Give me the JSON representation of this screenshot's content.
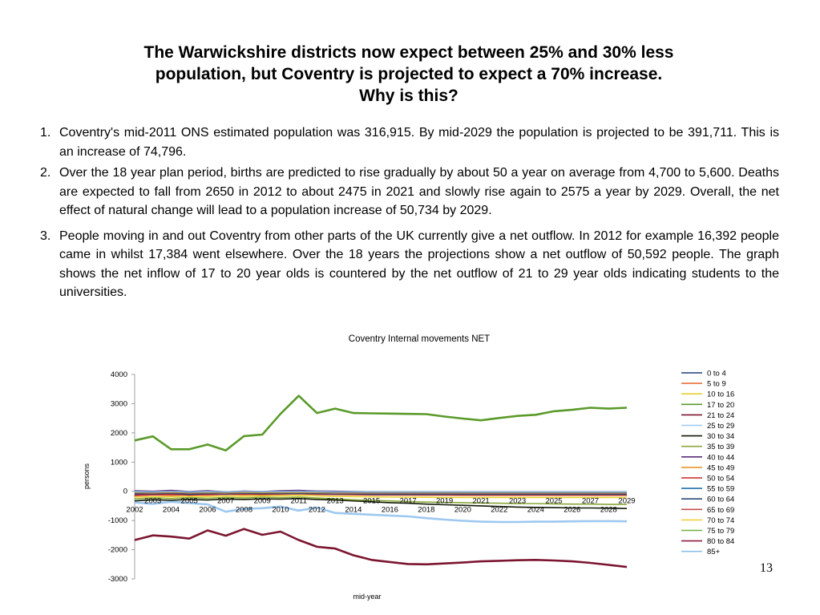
{
  "slide": {
    "title_lines": [
      "The Warwickshire districts now expect between 25% and 30% less",
      "population, but Coventry is projected to expect a 70% increase.",
      "Why is this?"
    ],
    "points": [
      {
        "num": "1.",
        "text": "Coventry's mid-2011  ONS estimated population was 316,915. By mid-2029 the population is projected to be 391,711. This is an increase of 74,796."
      },
      {
        "num": "2.",
        "text": "Over the 18 year plan period, births are predicted to rise gradually by about 50 a year on average from 4,700 to 5,600. Deaths are expected to fall from 2650 in 2012 to about 2475 in 2021 and slowly rise again to 2575 a year by 2029. Overall, the net effect of natural change will lead to a population increase of 50,734 by 2029."
      },
      {
        "num": "3.",
        "text": "People moving in and out Coventry from other parts of the UK currently give a net outflow. In 2012 for example 16,392 people came in whilst 17,384 went elsewhere. Over the 18 years the projections show a net outflow of 50,592 people. The graph shows the net inflow of 17 to 20 year olds is countered by the net outflow of 21 to 29 year olds indicating students to the universities."
      }
    ],
    "page_number": "13"
  },
  "chart_data": {
    "type": "line",
    "title": "Coventry Internal movements NET",
    "xlabel": "mid-year",
    "ylabel": "persons",
    "ylim": [
      -3000,
      4000
    ],
    "yticks": [
      4000,
      3000,
      2000,
      1000,
      0,
      -1000,
      -2000,
      -3000
    ],
    "grid": false,
    "legend_position": "right",
    "x": [
      2002,
      2003,
      2004,
      2005,
      2006,
      2007,
      2008,
      2009,
      2010,
      2011,
      2012,
      2013,
      2014,
      2015,
      2016,
      2017,
      2018,
      2019,
      2020,
      2021,
      2022,
      2023,
      2024,
      2025,
      2026,
      2027,
      2028,
      2029
    ],
    "xticks_upper": [
      "2003",
      "2005",
      "2007",
      "2009",
      "2011",
      "2013",
      "2015",
      "2017",
      "2019",
      "2021",
      "2023",
      "2025",
      "2027",
      "2029"
    ],
    "xticks_lower": [
      "2002",
      "2004",
      "2006",
      "2008",
      "2010",
      "2012",
      "2014",
      "2016",
      "2018",
      "2020",
      "2022",
      "2024",
      "2026",
      "2028"
    ],
    "series": [
      {
        "name": "0 to 4",
        "color": "#1f3f7f",
        "values": [
          -120,
          -100,
          -110,
          -90,
          -100,
          -80,
          -90,
          -70,
          -80,
          -60,
          -70,
          -80,
          -90,
          -90,
          -95,
          -95,
          -100,
          -100,
          -100,
          -100,
          -100,
          -100,
          -100,
          -100,
          -100,
          -100,
          -100,
          -100
        ]
      },
      {
        "name": "5 to 9",
        "color": "#e8703a",
        "values": [
          -150,
          -120,
          -140,
          -110,
          -130,
          -100,
          -120,
          -100,
          -110,
          -90,
          -100,
          -110,
          -120,
          -125,
          -130,
          -130,
          -135,
          -135,
          -140,
          -140,
          -140,
          -140,
          -140,
          -140,
          -140,
          -140,
          -140,
          -140
        ]
      },
      {
        "name": "10 to 16",
        "color": "#e8d030",
        "values": [
          -200,
          -180,
          -190,
          -170,
          -180,
          -160,
          -170,
          -150,
          -160,
          -140,
          -160,
          -170,
          -180,
          -190,
          -200,
          -200,
          -205,
          -210,
          -210,
          -210,
          -210,
          -210,
          -210,
          -210,
          -210,
          -210,
          -210,
          -210
        ]
      },
      {
        "name": "17 to 20",
        "color": "#5a9a2a",
        "values": [
          1740,
          1880,
          1440,
          1440,
          1600,
          1400,
          1890,
          1940,
          2650,
          3270,
          2680,
          2830,
          2680,
          2670,
          2660,
          2650,
          2640,
          2560,
          2490,
          2430,
          2510,
          2580,
          2620,
          2740,
          2790,
          2860,
          2830,
          2860
        ]
      },
      {
        "name": "21 to 24",
        "color": "#7b1530",
        "values": [
          -1670,
          -1510,
          -1550,
          -1620,
          -1340,
          -1520,
          -1290,
          -1490,
          -1380,
          -1670,
          -1900,
          -1960,
          -2190,
          -2350,
          -2420,
          -2490,
          -2500,
          -2470,
          -2440,
          -2400,
          -2380,
          -2360,
          -2350,
          -2370,
          -2400,
          -2450,
          -2520,
          -2590
        ]
      },
      {
        "name": "25 to 29",
        "color": "#9dc8f0",
        "values": [
          -380,
          -430,
          -360,
          -400,
          -450,
          -700,
          -600,
          -580,
          -520,
          -660,
          -560,
          -740,
          -770,
          -800,
          -830,
          -860,
          -920,
          -970,
          -1010,
          -1040,
          -1050,
          -1050,
          -1040,
          -1040,
          -1030,
          -1020,
          -1020,
          -1030
        ]
      },
      {
        "name": "30 to 34",
        "color": "#101a06",
        "values": [
          -330,
          -290,
          -310,
          -280,
          -300,
          -270,
          -280,
          -260,
          -270,
          -250,
          -280,
          -300,
          -330,
          -360,
          -390,
          -410,
          -440,
          -460,
          -480,
          -500,
          -520,
          -540,
          -550,
          -560,
          -570,
          -570,
          -580,
          -590
        ]
      },
      {
        "name": "35 to 39",
        "color": "#8aa83a",
        "values": [
          -260,
          -230,
          -250,
          -220,
          -240,
          -210,
          -230,
          -200,
          -220,
          -200,
          -230,
          -260,
          -290,
          -310,
          -330,
          -350,
          -370,
          -380,
          -390,
          -400,
          -410,
          -420,
          -420,
          -430,
          -440,
          -440,
          -450,
          -450
        ]
      },
      {
        "name": "40 to 44",
        "color": "#5a2a7a",
        "values": [
          20,
          0,
          30,
          -10,
          20,
          -20,
          10,
          -10,
          20,
          30,
          10,
          0,
          -10,
          -20,
          -30,
          -30,
          -40,
          -40,
          -40,
          -40,
          -40,
          -40,
          -40,
          -40,
          -40,
          -40,
          -40,
          -40
        ]
      },
      {
        "name": "45 to 49",
        "color": "#e8962a",
        "values": [
          -60,
          -50,
          -70,
          -40,
          -60,
          -30,
          -50,
          -40,
          -60,
          -30,
          -50,
          -60,
          -70,
          -70,
          -80,
          -80,
          -80,
          -80,
          -80,
          -80,
          -80,
          -80,
          -80,
          -80,
          -80,
          -80,
          -80,
          -80
        ]
      },
      {
        "name": "50 to 54",
        "color": "#cc2222",
        "values": [
          -140,
          -120,
          -100,
          -130,
          -110,
          -100,
          -90,
          -110,
          -90,
          -80,
          -100,
          -110,
          -110,
          -120,
          -120,
          -120,
          -120,
          -120,
          -120,
          -120,
          -120,
          -120,
          -120,
          -120,
          -120,
          -120,
          -120,
          -120
        ]
      },
      {
        "name": "55 to 59",
        "color": "#1f6fb0",
        "values": [
          -60,
          -70,
          -50,
          -80,
          -60,
          -70,
          -50,
          -60,
          -60,
          -50,
          -60,
          -70,
          -70,
          -80,
          -80,
          -80,
          -80,
          -80,
          -80,
          -80,
          -80,
          -80,
          -80,
          -80,
          -80,
          -80,
          -80,
          -80
        ]
      },
      {
        "name": "60 to 64",
        "color": "#2a4a7a",
        "values": [
          -80,
          -90,
          -70,
          -100,
          -80,
          -90,
          -70,
          -80,
          -80,
          -70,
          -80,
          -90,
          -90,
          -100,
          -100,
          -100,
          -100,
          -100,
          -100,
          -100,
          -100,
          -100,
          -100,
          -100,
          -100,
          -100,
          -100,
          -100
        ]
      },
      {
        "name": "65 to 69",
        "color": "#c0504d",
        "values": [
          -50,
          -60,
          -40,
          -60,
          -50,
          -60,
          -40,
          -50,
          -50,
          -40,
          -50,
          -60,
          -60,
          -60,
          -60,
          -60,
          -60,
          -60,
          -60,
          -60,
          -60,
          -60,
          -60,
          -60,
          -60,
          -60,
          -60,
          -60
        ]
      },
      {
        "name": "70 to 74",
        "color": "#f0d040",
        "values": [
          -40,
          -50,
          -30,
          -50,
          -40,
          -50,
          -30,
          -40,
          -40,
          -30,
          -40,
          -50,
          -50,
          -50,
          -50,
          -50,
          -50,
          -50,
          -50,
          -50,
          -50,
          -50,
          -50,
          -50,
          -50,
          -50,
          -50,
          -50
        ]
      },
      {
        "name": "75 to 79",
        "color": "#76b041",
        "values": [
          -30,
          -40,
          -20,
          -40,
          -30,
          -40,
          -20,
          -30,
          -30,
          -20,
          -30,
          -40,
          -40,
          -40,
          -40,
          -40,
          -40,
          -40,
          -40,
          -40,
          -40,
          -40,
          -40,
          -40,
          -40,
          -40,
          -40,
          -40
        ]
      },
      {
        "name": "80 to 84",
        "color": "#8b1a3a",
        "values": [
          -20,
          -30,
          -10,
          -30,
          -20,
          -30,
          -10,
          -20,
          -20,
          -10,
          -20,
          -30,
          -30,
          -30,
          -30,
          -30,
          -30,
          -30,
          -30,
          -30,
          -30,
          -30,
          -30,
          -30,
          -30,
          -30,
          -30,
          -30
        ]
      },
      {
        "name": "85+",
        "color": "#8ec0e8",
        "values": [
          -10,
          -20,
          0,
          -20,
          -10,
          -20,
          0,
          -10,
          -10,
          0,
          -10,
          -20,
          -20,
          -20,
          -20,
          -20,
          -20,
          -20,
          -20,
          -20,
          -20,
          -20,
          -20,
          -20,
          -20,
          -20,
          -20,
          -20
        ]
      }
    ]
  }
}
